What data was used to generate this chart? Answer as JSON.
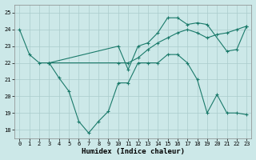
{
  "xlabel": "Humidex (Indice chaleur)",
  "bg_color": "#cce8e8",
  "grid_color": "#aacccc",
  "line_color": "#1a7a6a",
  "xlim": [
    -0.5,
    23.5
  ],
  "ylim": [
    17.5,
    25.5
  ],
  "xticks": [
    0,
    1,
    2,
    3,
    4,
    5,
    6,
    7,
    8,
    9,
    10,
    11,
    12,
    13,
    14,
    15,
    16,
    17,
    18,
    19,
    20,
    21,
    22,
    23
  ],
  "yticks": [
    18,
    19,
    20,
    21,
    22,
    23,
    24,
    25
  ],
  "line1_x": [
    0,
    1,
    2,
    3,
    10,
    11,
    12,
    13,
    14,
    15,
    16,
    17,
    18,
    19,
    21,
    22,
    23
  ],
  "line1_y": [
    24,
    22.5,
    22,
    22,
    23,
    21.6,
    23,
    23.2,
    23.8,
    24.7,
    24.7,
    24.3,
    24.4,
    24.3,
    22.7,
    22.8,
    24.2
  ],
  "line2_x": [
    3,
    10,
    11,
    12,
    13,
    14,
    15,
    16,
    17,
    18,
    19,
    20,
    21,
    22,
    23
  ],
  "line2_y": [
    22,
    22,
    22,
    22.3,
    22.8,
    23.2,
    23.5,
    23.8,
    24.0,
    23.8,
    23.5,
    23.7,
    23.8,
    24.0,
    24.2
  ],
  "line3_x": [
    3,
    4,
    5,
    6,
    7,
    8,
    9,
    10,
    11,
    12,
    13,
    14,
    15,
    16,
    17,
    18,
    19,
    20,
    21,
    22,
    23
  ],
  "line3_y": [
    22,
    21.1,
    20.3,
    18.5,
    17.8,
    18.5,
    19.1,
    20.8,
    20.8,
    22,
    22,
    22,
    22.5,
    22.5,
    22,
    21,
    19.0,
    20.1,
    19.0,
    19.0,
    18.9
  ]
}
